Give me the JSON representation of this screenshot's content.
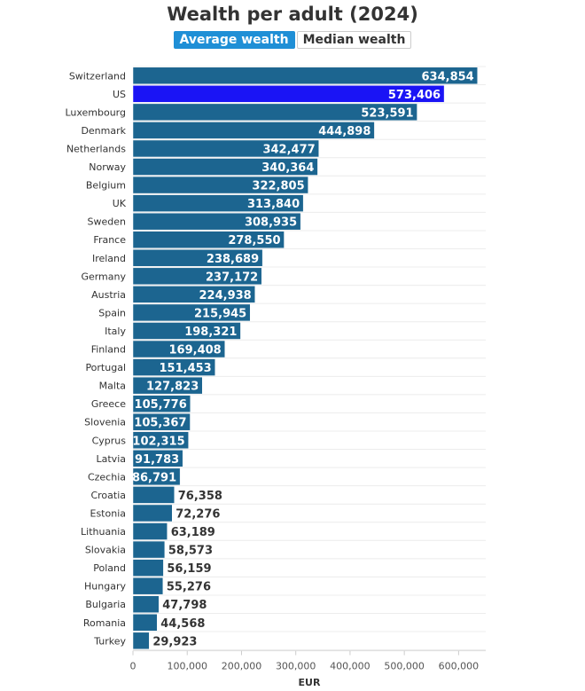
{
  "title": "Wealth per adult (2024)",
  "toggles": [
    {
      "label": "Average wealth",
      "active": true
    },
    {
      "label": "Median wealth",
      "active": false
    }
  ],
  "colors": {
    "bar": "#1c6590",
    "highlight": "#1a14f5",
    "active_toggle": "#1f8fd6"
  },
  "chart_data": {
    "type": "bar",
    "orientation": "horizontal",
    "xlabel": "EUR",
    "xlim": [
      0,
      650000
    ],
    "xticks": [
      "0",
      "100,000",
      "200,000",
      "300,000",
      "400,000",
      "500,000",
      "600,000"
    ],
    "xtick_values": [
      0,
      100000,
      200000,
      300000,
      400000,
      500000,
      600000
    ],
    "grid": true,
    "highlighted": "US",
    "categories": [
      "Switzerland",
      "US",
      "Luxembourg",
      "Denmark",
      "Netherlands",
      "Norway",
      "Belgium",
      "UK",
      "Sweden",
      "France",
      "Ireland",
      "Germany",
      "Austria",
      "Spain",
      "Italy",
      "Finland",
      "Portugal",
      "Malta",
      "Greece",
      "Slovenia",
      "Cyprus",
      "Latvia",
      "Czechia",
      "Croatia",
      "Estonia",
      "Lithuania",
      "Slovakia",
      "Poland",
      "Hungary",
      "Bulgaria",
      "Romania",
      "Turkey"
    ],
    "values": [
      634854,
      573406,
      523591,
      444898,
      342477,
      340364,
      322805,
      313840,
      308935,
      278550,
      238689,
      237172,
      224938,
      215945,
      198321,
      169408,
      151453,
      127823,
      105776,
      105367,
      102315,
      91783,
      86791,
      76358,
      72276,
      63189,
      58573,
      56159,
      55276,
      47798,
      44568,
      29923
    ],
    "value_labels": [
      "634,854",
      "573,406",
      "523,591",
      "444,898",
      "342,477",
      "340,364",
      "322,805",
      "313,840",
      "308,935",
      "278,550",
      "238,689",
      "237,172",
      "224,938",
      "215,945",
      "198,321",
      "169,408",
      "151,453",
      "127,823",
      "105,776",
      "105,367",
      "102,315",
      "91,783",
      "86,791",
      "76,358",
      "72,276",
      "63,189",
      "58,573",
      "56,159",
      "55,276",
      "47,798",
      "44,568",
      "29,923"
    ]
  }
}
